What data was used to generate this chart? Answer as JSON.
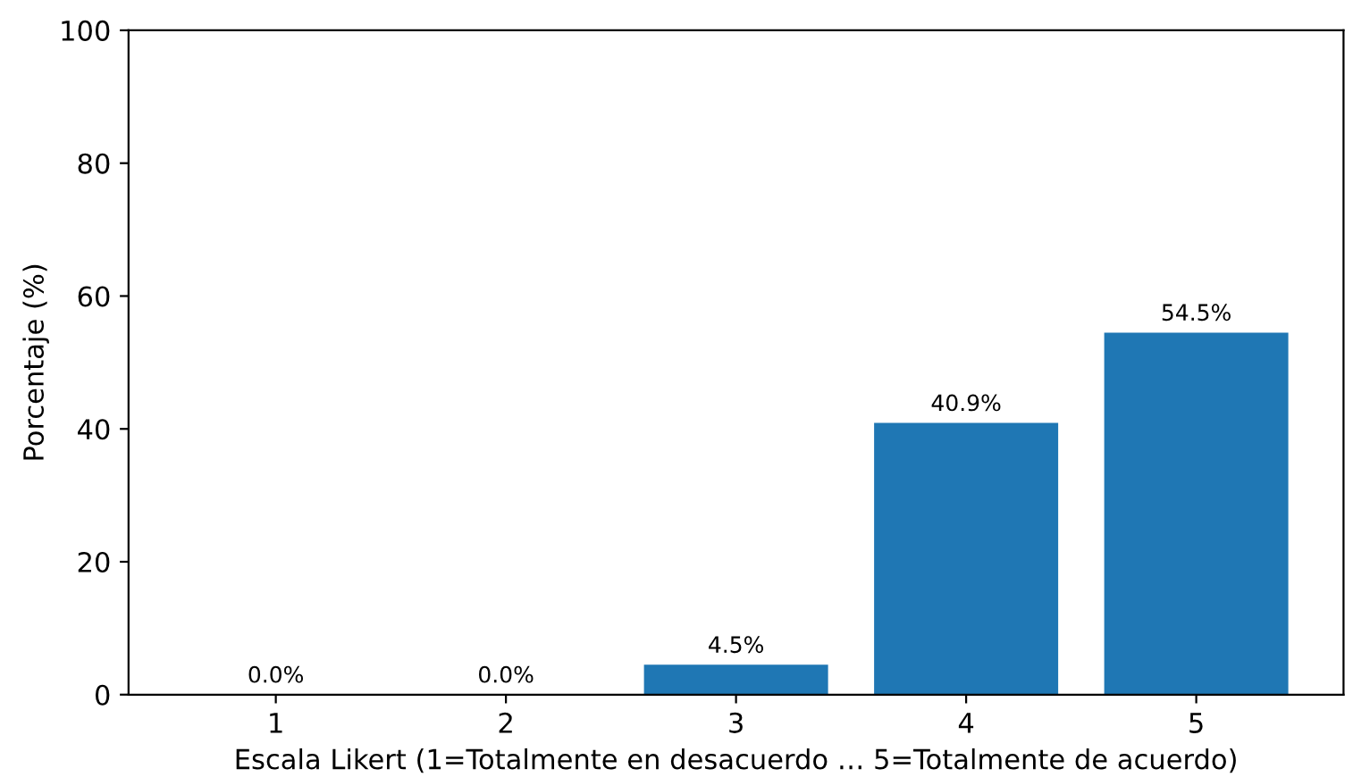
{
  "chart_data": {
    "type": "bar",
    "xlabel": "Escala Likert (1=Totalmente en desacuerdo … 5=Totalmente de acuerdo)",
    "ylabel": "Porcentaje (%)",
    "categories": [
      "1",
      "2",
      "3",
      "4",
      "5"
    ],
    "values": [
      0.0,
      0.0,
      4.5,
      40.9,
      54.5
    ],
    "value_labels": [
      "0.0%",
      "0.0%",
      "4.5%",
      "40.9%",
      "54.5%"
    ],
    "color": "#1f77b4",
    "ylim": [
      0,
      100
    ],
    "yticks": [
      0,
      20,
      40,
      60,
      80,
      100
    ],
    "grid": false
  }
}
